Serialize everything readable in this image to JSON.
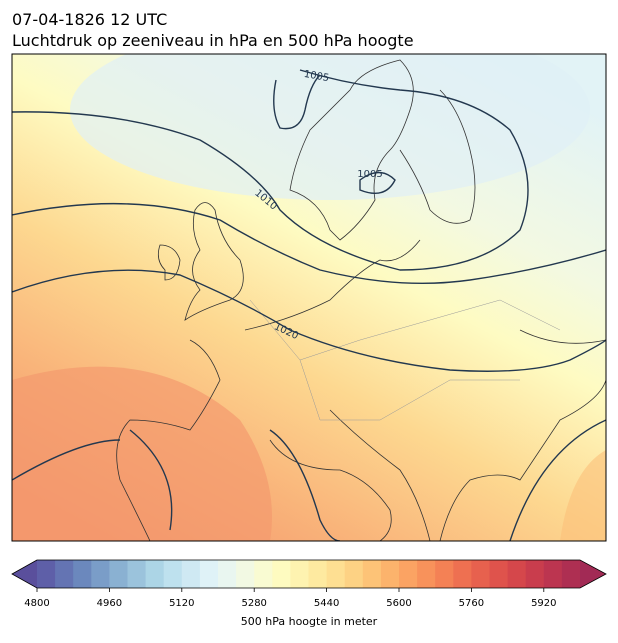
{
  "header": {
    "title": "07-04-1826 12 UTC",
    "subtitle": "Luchtdruk op zeeniveau in hPa en 500 hPa hoogte"
  },
  "contour_labels": [
    "1005",
    "1005",
    "1010",
    "1020"
  ],
  "colorbar": {
    "label": "500 hPa hoogte in meter",
    "lim": [
      4800,
      6000
    ],
    "ticks": [
      4800,
      4960,
      5120,
      5280,
      5440,
      5600,
      5760,
      5920
    ],
    "colors": [
      "#5e5fa8",
      "#6474b3",
      "#6b88bd",
      "#7a9dc8",
      "#8ab1d2",
      "#9bc3dc",
      "#acd5e6",
      "#bee1ee",
      "#cfe9f3",
      "#dff2f7",
      "#e9f6f0",
      "#f2f9e3",
      "#f9fbd2",
      "#fefbc0",
      "#fef3b0",
      "#feeaa0",
      "#fedf92",
      "#fdd284",
      "#fdc377",
      "#fcb36c",
      "#fba363",
      "#f8925b",
      "#f48155",
      "#ee7051",
      "#e7614e",
      "#df534c",
      "#d5474b",
      "#c93d4d",
      "#bc3550",
      "#ae2f52"
    ],
    "under_color": "#5a4f9c",
    "over_color": "#a22a55"
  }
}
